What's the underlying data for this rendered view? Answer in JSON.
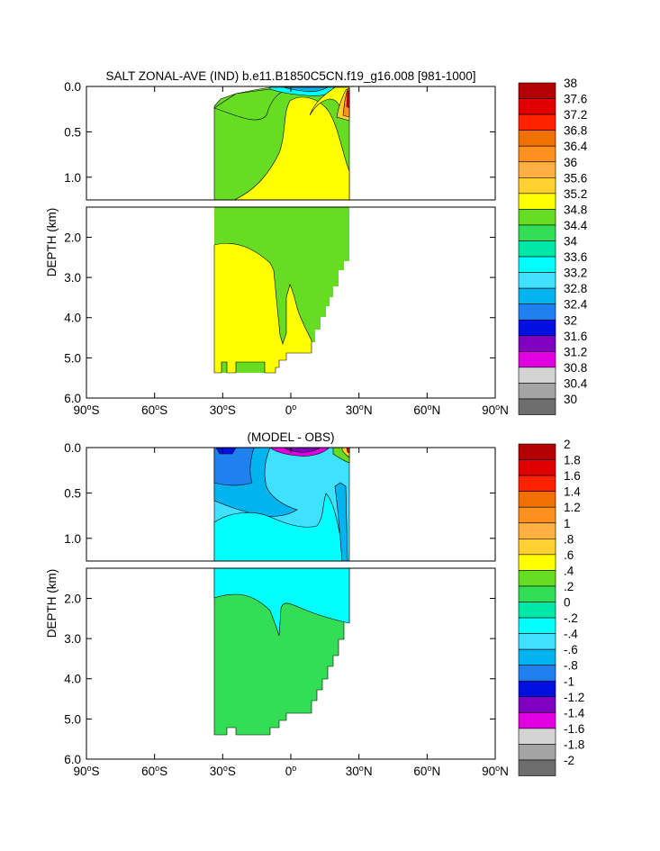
{
  "chart_data": [
    {
      "type": "heatmap",
      "title": "SALT ZONAL-AVE (IND) b.e11.B1850C5CN.f19_g16.008 [981-1000]",
      "ylabel": "DEPTH (km)",
      "xlim": [
        -90,
        90
      ],
      "ylim": [
        6.0,
        0.0
      ],
      "depth_break_km": 1.25,
      "x_ticks": [
        {
          "value": -90,
          "label": "90",
          "suffix": "S"
        },
        {
          "value": -60,
          "label": "60",
          "suffix": "S"
        },
        {
          "value": -30,
          "label": "30",
          "suffix": "S"
        },
        {
          "value": 0,
          "label": "0",
          "suffix": ""
        },
        {
          "value": 30,
          "label": "30",
          "suffix": "N"
        },
        {
          "value": 60,
          "label": "60",
          "suffix": "N"
        },
        {
          "value": 90,
          "label": "90",
          "suffix": "N"
        }
      ],
      "y_ticks_upper": [
        {
          "value": 0.0,
          "label": "0.0"
        },
        {
          "value": 0.5,
          "label": "0.5"
        },
        {
          "value": 1.0,
          "label": "1.0"
        }
      ],
      "y_ticks_lower": [
        {
          "value": 2.0,
          "label": "2.0"
        },
        {
          "value": 3.0,
          "label": "3.0"
        },
        {
          "value": 4.0,
          "label": "4.0"
        },
        {
          "value": 5.0,
          "label": "5.0"
        },
        {
          "value": 6.0,
          "label": "6.0"
        }
      ],
      "colorbar": {
        "labels": [
          "38",
          "37.6",
          "37.2",
          "36.8",
          "36.4",
          "36",
          "35.6",
          "35.2",
          "34.8",
          "34.4",
          "34",
          "33.6",
          "33.2",
          "32.8",
          "32.4",
          "32",
          "31.6",
          "31.2",
          "30.8",
          "30.4",
          "30"
        ],
        "colors": [
          "#b30000",
          "#e00000",
          "#ff2200",
          "#f07000",
          "#ff9020",
          "#ffb040",
          "#ffd030",
          "#ffff00",
          "#66dd22",
          "#33dd55",
          "#00e8a8",
          "#00ffff",
          "#40e0ff",
          "#00b4f0",
          "#2080f0",
          "#0010e0",
          "#8000c0",
          "#e000e0",
          "#d4d4d4",
          "#a4a4a4",
          "#6e6e6e"
        ]
      },
      "field_regions": [
        {
          "value": 34.6,
          "lat_range": [
            -34,
            26
          ],
          "depth_range": [
            0.05,
            5.35
          ],
          "note_color_index": 8
        },
        {
          "value": 34.7,
          "lat_range": [
            -34,
            10
          ],
          "depth_range": [
            2.1,
            5.4
          ],
          "note_color_index": 7
        },
        {
          "value": 34.9,
          "lat_range": [
            18,
            26
          ],
          "depth_range": [
            0.0,
            0.25
          ],
          "note_color_index": 7
        },
        {
          "value": 36.0,
          "lat_range": [
            22,
            26
          ],
          "depth_range": [
            0.0,
            0.3
          ],
          "note_color_index": 5
        },
        {
          "value": 33.8,
          "lat_range": [
            -5,
            22
          ],
          "depth_range": [
            0.0,
            0.12
          ],
          "note_color_index": 11
        }
      ]
    },
    {
      "type": "heatmap",
      "title": "(MODEL - OBS)",
      "ylabel": "DEPTH (km)",
      "xlim": [
        -90,
        90
      ],
      "ylim": [
        6.0,
        0.0
      ],
      "depth_break_km": 1.25,
      "x_ticks": [
        {
          "value": -90,
          "label": "90",
          "suffix": "S"
        },
        {
          "value": -60,
          "label": "60",
          "suffix": "S"
        },
        {
          "value": -30,
          "label": "30",
          "suffix": "S"
        },
        {
          "value": 0,
          "label": "0",
          "suffix": ""
        },
        {
          "value": 30,
          "label": "30",
          "suffix": "N"
        },
        {
          "value": 60,
          "label": "60",
          "suffix": "N"
        },
        {
          "value": 90,
          "label": "90",
          "suffix": "N"
        }
      ],
      "y_ticks_upper": [
        {
          "value": 0.0,
          "label": "0.0"
        },
        {
          "value": 0.5,
          "label": "0.5"
        },
        {
          "value": 1.0,
          "label": "1.0"
        }
      ],
      "y_ticks_lower": [
        {
          "value": 2.0,
          "label": "2.0"
        },
        {
          "value": 3.0,
          "label": "3.0"
        },
        {
          "value": 4.0,
          "label": "4.0"
        },
        {
          "value": 5.0,
          "label": "5.0"
        },
        {
          "value": 6.0,
          "label": "6.0"
        }
      ],
      "colorbar": {
        "labels": [
          "2",
          "1.8",
          "1.6",
          "1.4",
          "1.2",
          "1",
          ".8",
          ".6",
          ".4",
          ".2",
          "0",
          "-.2",
          "-.4",
          "-.6",
          "-.8",
          "-1",
          "-1.2",
          "-1.4",
          "-1.6",
          "-1.8",
          "-2"
        ],
        "colors": [
          "#b30000",
          "#e00000",
          "#ff2200",
          "#f07000",
          "#ff9020",
          "#ffb040",
          "#ffd030",
          "#ffff00",
          "#66dd22",
          "#33dd55",
          "#00e8a8",
          "#00ffff",
          "#40e0ff",
          "#00b4f0",
          "#2080f0",
          "#0010e0",
          "#8000c0",
          "#e000e0",
          "#d4d4d4",
          "#a4a4a4",
          "#6e6e6e"
        ]
      },
      "field_regions": [
        {
          "value": -0.7,
          "lat_range": [
            -34,
            26
          ],
          "depth_range": [
            0.0,
            0.6
          ],
          "note_color_index": 13
        },
        {
          "value": -0.3,
          "lat_range": [
            -34,
            26
          ],
          "depth_range": [
            0.6,
            1.9
          ],
          "note_color_index": 11
        },
        {
          "value": 0.1,
          "lat_range": [
            -34,
            26
          ],
          "depth_range": [
            1.9,
            5.4
          ],
          "note_color_index": 9
        },
        {
          "value": -1.4,
          "lat_range": [
            -25,
            18
          ],
          "depth_range": [
            0.0,
            0.08
          ],
          "note_color_index": 17
        }
      ]
    }
  ]
}
